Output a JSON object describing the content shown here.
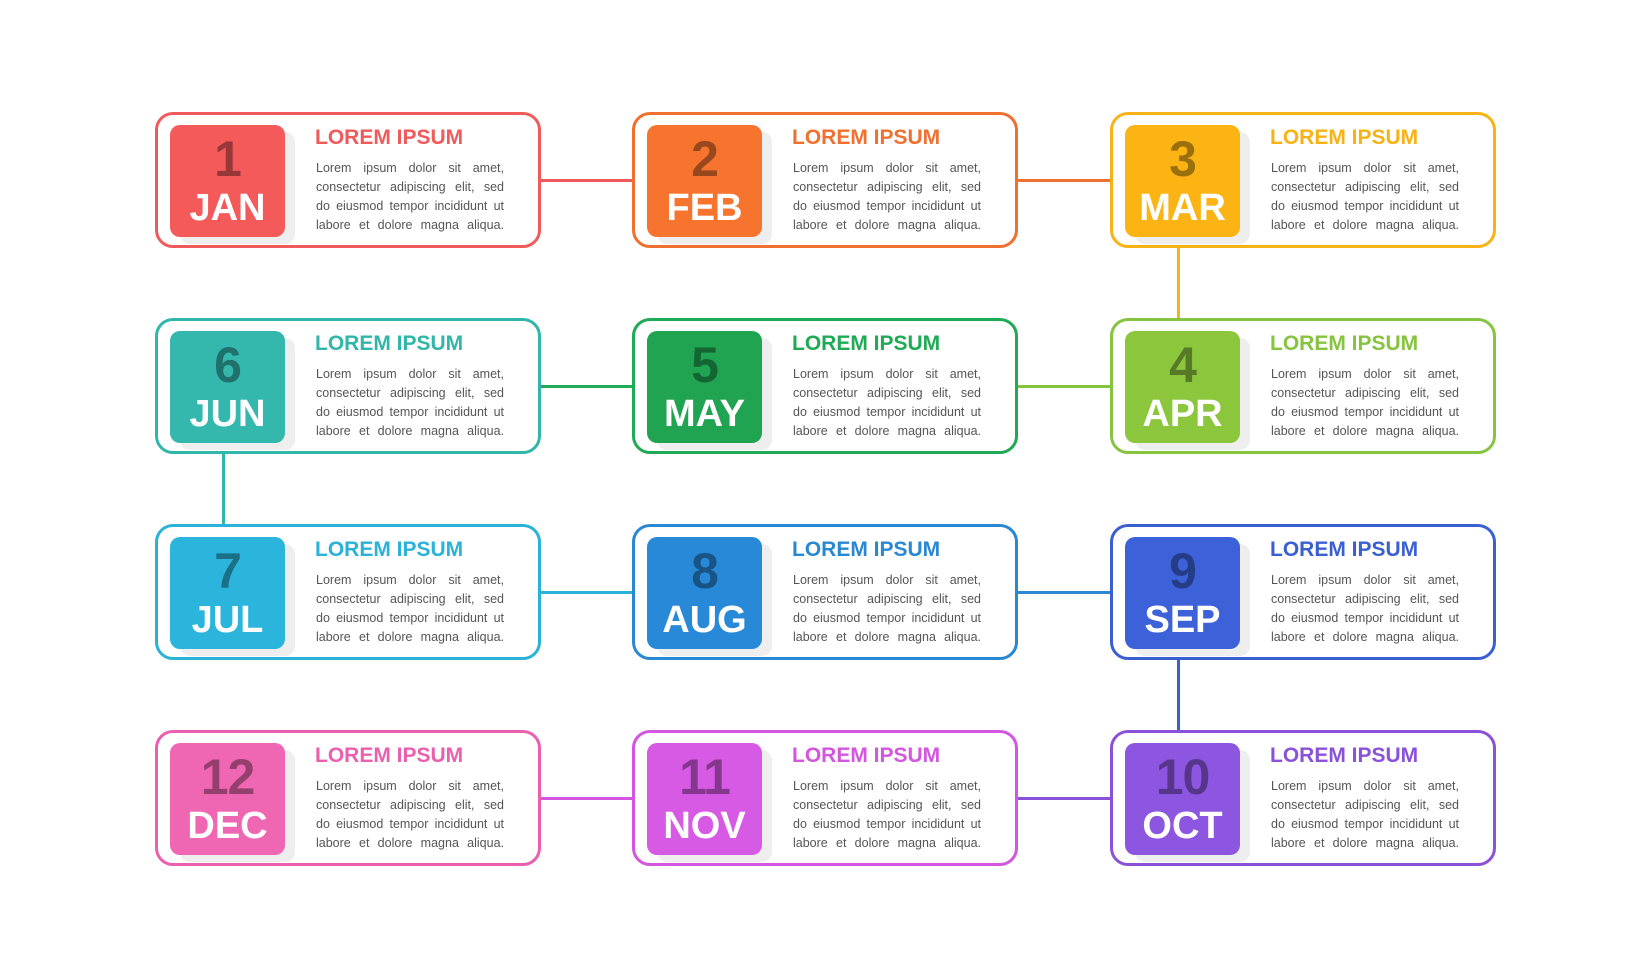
{
  "cards": [
    {
      "number": "1",
      "month": "JAN",
      "title": "LOREM IPSUM",
      "lines": [
        "Lorem ipsum dolor sit amet,",
        "consectetur adipiscing elit, sed",
        "do eiusmod tempor incididunt ut",
        "labore et dolore magna aliqua."
      ],
      "color": "#f05a5a",
      "badge": "#f55a5a"
    },
    {
      "number": "2",
      "month": "FEB",
      "title": "LOREM IPSUM",
      "lines": [
        "Lorem ipsum dolor sit amet,",
        "consectetur adipiscing elit, sed",
        "do eiusmod tempor incididunt ut",
        "labore et dolore magna aliqua."
      ],
      "color": "#f07030",
      "badge": "#f7742f"
    },
    {
      "number": "3",
      "month": "MAR",
      "title": "LOREM IPSUM",
      "lines": [
        "Lorem ipsum dolor sit amet,",
        "consectetur adipiscing elit, sed",
        "do eiusmod tempor incididunt ut",
        "labore et dolore magna aliqua."
      ],
      "color": "#f7b316",
      "badge": "#fbb413"
    },
    {
      "number": "4",
      "month": "APR",
      "title": "LOREM IPSUM",
      "lines": [
        "Lorem ipsum dolor sit amet,",
        "consectetur adipiscing elit, sed",
        "do eiusmod tempor incididunt ut",
        "labore et dolore magna aliqua."
      ],
      "color": "#86c440",
      "badge": "#8cc63c"
    },
    {
      "number": "5",
      "month": "MAY",
      "title": "LOREM IPSUM",
      "lines": [
        "Lorem ipsum dolor sit amet,",
        "consectetur adipiscing elit, sed",
        "do eiusmod tempor incididunt ut",
        "labore et dolore magna aliqua."
      ],
      "color": "#1faa55",
      "badge": "#20a452"
    },
    {
      "number": "6",
      "month": "JUN",
      "title": "LOREM IPSUM",
      "lines": [
        "Lorem ipsum dolor sit amet,",
        "consectetur adipiscing elit, sed",
        "do eiusmod tempor incididunt ut",
        "labore et dolore magna aliqua."
      ],
      "color": "#31b6aa",
      "badge": "#34b7ad"
    },
    {
      "number": "7",
      "month": "JUL",
      "title": "LOREM IPSUM",
      "lines": [
        "Lorem ipsum dolor sit amet,",
        "consectetur adipiscing elit, sed",
        "do eiusmod tempor incididunt ut",
        "labore et dolore magna aliqua."
      ],
      "color": "#2ab2d8",
      "badge": "#2cb5dc"
    },
    {
      "number": "8",
      "month": "AUG",
      "title": "LOREM IPSUM",
      "lines": [
        "Lorem ipsum dolor sit amet,",
        "consectetur adipiscing elit, sed",
        "do eiusmod tempor incididunt ut",
        "labore et dolore magna aliqua."
      ],
      "color": "#2a88d2",
      "badge": "#2789d8"
    },
    {
      "number": "9",
      "month": "SEP",
      "title": "LOREM IPSUM",
      "lines": [
        "Lorem ipsum dolor sit amet,",
        "consectetur adipiscing elit, sed",
        "do eiusmod tempor incididunt ut",
        "labore et dolore magna aliqua."
      ],
      "color": "#3a5fd0",
      "badge": "#3d61d8"
    },
    {
      "number": "10",
      "month": "OCT",
      "title": "LOREM IPSUM",
      "lines": [
        "Lorem ipsum dolor sit amet,",
        "consectetur adipiscing elit, sed",
        "do eiusmod tempor incididunt ut",
        "labore et dolore magna aliqua."
      ],
      "color": "#8a52d8",
      "badge": "#8d56e0"
    },
    {
      "number": "11",
      "month": "NOV",
      "title": "LOREM IPSUM",
      "lines": [
        "Lorem ipsum dolor sit amet,",
        "consectetur adipiscing elit, sed",
        "do eiusmod tempor incididunt ut",
        "labore et dolore magna aliqua."
      ],
      "color": "#d455e0",
      "badge": "#d75ae4"
    },
    {
      "number": "12",
      "month": "DEC",
      "title": "LOREM IPSUM",
      "lines": [
        "Lorem ipsum dolor sit amet,",
        "consectetur adipiscing elit, sed",
        "do eiusmod tempor incididunt ut",
        "labore et dolore magna aliqua."
      ],
      "color": "#ea5fae",
      "badge": "#ef66b2"
    }
  ]
}
